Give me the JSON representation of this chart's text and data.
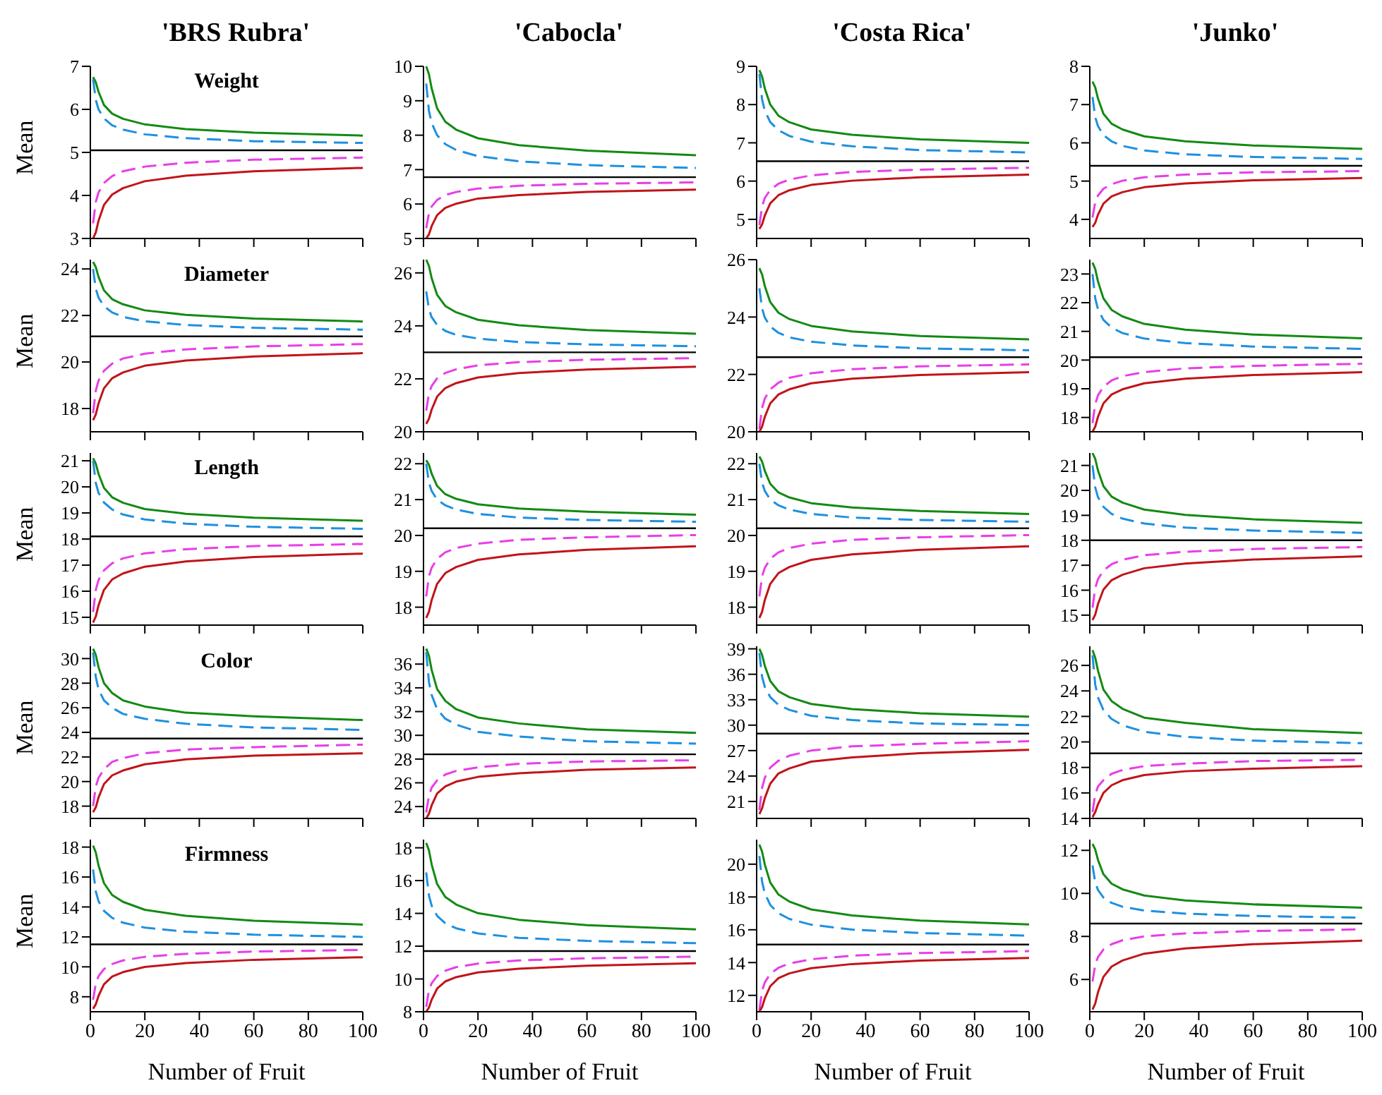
{
  "chart_data": [
    {
      "type": "line",
      "title": "'BRS Rubra'",
      "subtitle": "Weight",
      "ylabel": "Mean",
      "x": [
        1,
        2,
        3,
        5,
        8,
        12,
        20,
        35,
        60,
        100
      ],
      "xlim": [
        0,
        100
      ],
      "xticks": [
        0,
        20,
        40,
        60,
        80,
        100
      ],
      "ylim": [
        3,
        7
      ],
      "yticks": [
        3,
        4,
        5,
        6,
        7
      ],
      "tick_labels": "y",
      "ref_lines": [
        {
          "axis": "y",
          "value": 5.05,
          "color": "#000000"
        }
      ],
      "series": [
        {
          "color": "#138a13",
          "values": [
            6.75,
            6.63,
            6.41,
            6.1,
            5.9,
            5.78,
            5.65,
            5.54,
            5.46,
            5.39
          ]
        },
        {
          "color": "#1e90e0",
          "line_style": "dashed",
          "values": [
            6.7,
            6.22,
            6.0,
            5.79,
            5.63,
            5.53,
            5.42,
            5.33,
            5.26,
            5.22
          ]
        },
        {
          "color": "#e83ee8",
          "line_style": "dashed",
          "values": [
            3.35,
            3.85,
            4.07,
            4.29,
            4.45,
            4.56,
            4.67,
            4.76,
            4.83,
            4.88
          ]
        },
        {
          "color": "#c0141a",
          "values": [
            3.0,
            3.14,
            3.41,
            3.78,
            4.02,
            4.17,
            4.33,
            4.46,
            4.56,
            4.64
          ]
        }
      ]
    },
    {
      "type": "line",
      "title": "'Cabocla'",
      "x": [
        1,
        2,
        3,
        5,
        8,
        12,
        20,
        35,
        60,
        100
      ],
      "xlim": [
        0,
        100
      ],
      "xticks": [
        0,
        20,
        40,
        60,
        80,
        100
      ],
      "ylim": [
        5,
        10
      ],
      "yticks": [
        5,
        6,
        7,
        8,
        9,
        10
      ],
      "tick_labels": "y",
      "ref_lines": [
        {
          "axis": "y",
          "value": 6.78,
          "color": "#000000"
        }
      ],
      "series": [
        {
          "color": "#138a13",
          "values": [
            10.0,
            9.77,
            9.36,
            8.78,
            8.39,
            8.16,
            7.91,
            7.71,
            7.55,
            7.42
          ]
        },
        {
          "color": "#1e90e0",
          "line_style": "dashed",
          "values": [
            9.5,
            8.7,
            8.35,
            8.0,
            7.74,
            7.57,
            7.39,
            7.24,
            7.13,
            7.05
          ]
        },
        {
          "color": "#e83ee8",
          "line_style": "dashed",
          "values": [
            5.3,
            5.73,
            5.93,
            6.12,
            6.26,
            6.35,
            6.45,
            6.53,
            6.59,
            6.63
          ]
        },
        {
          "color": "#c0141a",
          "values": [
            5.0,
            5.12,
            5.36,
            5.68,
            5.89,
            6.01,
            6.16,
            6.26,
            6.35,
            6.42
          ]
        }
      ]
    },
    {
      "type": "line",
      "title": "'Costa Rica'",
      "x": [
        1,
        2,
        3,
        5,
        8,
        12,
        20,
        35,
        60,
        100
      ],
      "xlim": [
        0,
        100
      ],
      "xticks": [
        0,
        20,
        40,
        60,
        80,
        100
      ],
      "ylim": [
        4.5,
        9
      ],
      "yticks": [
        5,
        6,
        7,
        8,
        9
      ],
      "tick_labels": "y",
      "ref_lines": [
        {
          "axis": "y",
          "value": 6.52,
          "color": "#000000"
        }
      ],
      "series": [
        {
          "color": "#138a13",
          "values": [
            8.9,
            8.73,
            8.42,
            8.0,
            7.71,
            7.54,
            7.35,
            7.21,
            7.09,
            7.0
          ]
        },
        {
          "color": "#1e90e0",
          "line_style": "dashed",
          "values": [
            8.8,
            8.13,
            7.84,
            7.54,
            7.33,
            7.18,
            7.03,
            6.91,
            6.81,
            6.75
          ]
        },
        {
          "color": "#e83ee8",
          "line_style": "dashed",
          "values": [
            4.85,
            5.34,
            5.56,
            5.77,
            5.93,
            6.04,
            6.15,
            6.24,
            6.3,
            6.35
          ]
        },
        {
          "color": "#c0141a",
          "values": [
            4.75,
            4.87,
            5.1,
            5.42,
            5.63,
            5.76,
            5.9,
            6.01,
            6.1,
            6.17
          ]
        }
      ]
    },
    {
      "type": "line",
      "title": "'Junko'",
      "x": [
        1,
        2,
        3,
        5,
        8,
        12,
        20,
        35,
        60,
        100
      ],
      "xlim": [
        0,
        100
      ],
      "xticks": [
        0,
        20,
        40,
        60,
        80,
        100
      ],
      "ylim": [
        3.5,
        8
      ],
      "yticks": [
        4,
        5,
        6,
        7,
        8
      ],
      "tick_labels": "y",
      "ref_lines": [
        {
          "axis": "y",
          "value": 5.4,
          "color": "#000000"
        }
      ],
      "series": [
        {
          "color": "#138a13",
          "values": [
            7.6,
            7.45,
            7.16,
            6.76,
            6.5,
            6.35,
            6.17,
            6.04,
            5.93,
            5.84
          ]
        },
        {
          "color": "#1e90e0",
          "line_style": "dashed",
          "values": [
            7.2,
            6.67,
            6.44,
            6.2,
            6.04,
            5.92,
            5.8,
            5.7,
            5.63,
            5.58
          ]
        },
        {
          "color": "#e83ee8",
          "line_style": "dashed",
          "values": [
            4.05,
            4.45,
            4.62,
            4.8,
            4.92,
            5.01,
            5.1,
            5.17,
            5.23,
            5.26
          ]
        },
        {
          "color": "#c0141a",
          "values": [
            3.8,
            3.91,
            4.12,
            4.41,
            4.6,
            4.71,
            4.84,
            4.94,
            5.02,
            5.08
          ]
        }
      ]
    },
    {
      "type": "line",
      "subtitle": "Diameter",
      "ylabel": "Mean",
      "x": [
        1,
        2,
        3,
        5,
        8,
        12,
        20,
        35,
        60,
        100
      ],
      "xlim": [
        0,
        100
      ],
      "xticks": [
        0,
        20,
        40,
        60,
        80,
        100
      ],
      "ylim": [
        17,
        24.4
      ],
      "yticks": [
        18,
        20,
        22,
        24
      ],
      "tick_labels": "y",
      "ref_lines": [
        {
          "axis": "y",
          "value": 21.1,
          "color": "#000000"
        }
      ],
      "series": [
        {
          "color": "#138a13",
          "values": [
            24.3,
            24.08,
            23.66,
            23.08,
            22.7,
            22.48,
            22.22,
            22.03,
            21.87,
            21.74
          ]
        },
        {
          "color": "#1e90e0",
          "line_style": "dashed",
          "values": [
            24.0,
            23.15,
            22.77,
            22.4,
            22.13,
            21.94,
            21.75,
            21.59,
            21.47,
            21.39
          ]
        },
        {
          "color": "#e83ee8",
          "line_style": "dashed",
          "values": [
            17.8,
            18.77,
            19.2,
            19.62,
            19.93,
            20.15,
            20.36,
            20.54,
            20.67,
            20.77
          ]
        },
        {
          "color": "#c0141a",
          "values": [
            17.5,
            17.75,
            18.22,
            18.87,
            19.3,
            19.55,
            19.84,
            20.06,
            20.24,
            20.38
          ]
        }
      ]
    },
    {
      "type": "line",
      "x": [
        1,
        2,
        3,
        5,
        8,
        12,
        20,
        35,
        60,
        100
      ],
      "xlim": [
        0,
        100
      ],
      "xticks": [
        0,
        20,
        40,
        60,
        80,
        100
      ],
      "ylim": [
        20,
        26.5
      ],
      "yticks": [
        20,
        22,
        24,
        26
      ],
      "tick_labels": "y",
      "ref_lines": [
        {
          "axis": "y",
          "value": 23.0,
          "color": "#000000"
        }
      ],
      "series": [
        {
          "color": "#138a13",
          "values": [
            26.5,
            26.26,
            25.8,
            25.17,
            24.75,
            24.51,
            24.23,
            24.02,
            23.84,
            23.7
          ]
        },
        {
          "color": "#1e90e0",
          "line_style": "dashed",
          "values": [
            25.3,
            24.63,
            24.33,
            24.03,
            23.81,
            23.66,
            23.52,
            23.39,
            23.3,
            23.23
          ]
        },
        {
          "color": "#e83ee8",
          "line_style": "dashed",
          "values": [
            20.8,
            21.44,
            21.73,
            22.02,
            22.22,
            22.36,
            22.51,
            22.63,
            22.72,
            22.78
          ]
        },
        {
          "color": "#c0141a",
          "values": [
            20.3,
            20.49,
            20.84,
            21.33,
            21.65,
            21.84,
            22.05,
            22.22,
            22.35,
            22.46
          ]
        }
      ]
    },
    {
      "type": "line",
      "x": [
        1,
        2,
        3,
        5,
        8,
        12,
        20,
        35,
        60,
        100
      ],
      "xlim": [
        0,
        100
      ],
      "xticks": [
        0,
        20,
        40,
        60,
        80,
        100
      ],
      "ylim": [
        20,
        26
      ],
      "yticks": [
        20,
        22,
        24,
        26
      ],
      "tick_labels": "y",
      "ref_lines": [
        {
          "axis": "y",
          "value": 22.6,
          "color": "#000000"
        }
      ],
      "series": [
        {
          "color": "#138a13",
          "values": [
            25.7,
            25.48,
            25.08,
            24.52,
            24.15,
            23.93,
            23.69,
            23.5,
            23.34,
            23.22
          ]
        },
        {
          "color": "#1e90e0",
          "line_style": "dashed",
          "values": [
            25.0,
            24.3,
            23.98,
            23.67,
            23.45,
            23.29,
            23.14,
            23.01,
            22.91,
            22.84
          ]
        },
        {
          "color": "#e83ee8",
          "line_style": "dashed",
          "values": [
            20.1,
            20.83,
            21.16,
            21.48,
            21.71,
            21.88,
            22.04,
            22.18,
            22.28,
            22.35
          ]
        },
        {
          "color": "#c0141a",
          "values": [
            20.0,
            20.18,
            20.52,
            20.99,
            21.3,
            21.48,
            21.69,
            21.85,
            21.98,
            22.08
          ]
        }
      ]
    },
    {
      "type": "line",
      "x": [
        1,
        2,
        3,
        5,
        8,
        12,
        20,
        35,
        60,
        100
      ],
      "xlim": [
        0,
        100
      ],
      "xticks": [
        0,
        20,
        40,
        60,
        80,
        100
      ],
      "ylim": [
        17.5,
        23.5
      ],
      "yticks": [
        18,
        19,
        20,
        21,
        22,
        23
      ],
      "tick_labels": "y",
      "ref_lines": [
        {
          "axis": "y",
          "value": 20.1,
          "color": "#000000"
        }
      ],
      "series": [
        {
          "color": "#138a13",
          "values": [
            23.4,
            23.17,
            22.74,
            22.15,
            21.75,
            21.52,
            21.26,
            21.06,
            20.89,
            20.76
          ]
        },
        {
          "color": "#1e90e0",
          "line_style": "dashed",
          "values": [
            23.0,
            22.15,
            21.77,
            21.4,
            21.13,
            20.94,
            20.75,
            20.59,
            20.47,
            20.39
          ]
        },
        {
          "color": "#e83ee8",
          "line_style": "dashed",
          "values": [
            17.8,
            18.47,
            18.77,
            19.07,
            19.29,
            19.44,
            19.58,
            19.71,
            19.8,
            19.87
          ]
        },
        {
          "color": "#c0141a",
          "values": [
            17.5,
            17.68,
            18.02,
            18.49,
            18.8,
            18.98,
            19.19,
            19.35,
            19.48,
            19.58
          ]
        }
      ]
    },
    {
      "type": "line",
      "subtitle": "Length",
      "ylabel": "Mean",
      "x": [
        1,
        2,
        3,
        5,
        8,
        12,
        20,
        35,
        60,
        100
      ],
      "xlim": [
        0,
        100
      ],
      "xticks": [
        0,
        20,
        40,
        60,
        80,
        100
      ],
      "ylim": [
        14.7,
        21.3
      ],
      "yticks": [
        15,
        16,
        17,
        18,
        19,
        20,
        21
      ],
      "tick_labels": "y",
      "ref_lines": [
        {
          "axis": "y",
          "value": 18.1,
          "color": "#000000"
        }
      ],
      "series": [
        {
          "color": "#138a13",
          "values": [
            21.1,
            20.89,
            20.5,
            19.96,
            19.6,
            19.39,
            19.15,
            18.97,
            18.82,
            18.7
          ]
        },
        {
          "color": "#1e90e0",
          "line_style": "dashed",
          "values": [
            21.0,
            20.15,
            19.77,
            19.4,
            19.13,
            18.94,
            18.75,
            18.59,
            18.47,
            18.39
          ]
        },
        {
          "color": "#e83ee8",
          "line_style": "dashed",
          "values": [
            15.2,
            16.05,
            16.43,
            16.8,
            17.07,
            17.26,
            17.45,
            17.61,
            17.73,
            17.81
          ]
        },
        {
          "color": "#c0141a",
          "values": [
            14.8,
            15.03,
            15.46,
            16.05,
            16.45,
            16.68,
            16.94,
            17.14,
            17.31,
            17.44
          ]
        }
      ]
    },
    {
      "type": "line",
      "x": [
        1,
        2,
        3,
        5,
        8,
        12,
        20,
        35,
        60,
        100
      ],
      "xlim": [
        0,
        100
      ],
      "xticks": [
        0,
        20,
        40,
        60,
        80,
        100
      ],
      "ylim": [
        17.5,
        22.3
      ],
      "yticks": [
        18,
        19,
        20,
        21,
        22
      ],
      "tick_labels": "y",
      "ref_lines": [
        {
          "axis": "y",
          "value": 20.2,
          "color": "#000000"
        }
      ],
      "series": [
        {
          "color": "#138a13",
          "values": [
            22.1,
            21.97,
            21.72,
            21.38,
            21.15,
            21.02,
            20.87,
            20.75,
            20.66,
            20.58
          ]
        },
        {
          "color": "#1e90e0",
          "line_style": "dashed",
          "values": [
            22.0,
            21.47,
            21.24,
            21.0,
            20.84,
            20.72,
            20.6,
            20.5,
            20.43,
            20.38
          ]
        },
        {
          "color": "#e83ee8",
          "line_style": "dashed",
          "values": [
            18.3,
            18.86,
            19.1,
            19.35,
            19.53,
            19.65,
            19.77,
            19.88,
            19.95,
            20.01
          ]
        },
        {
          "color": "#c0141a",
          "values": [
            17.7,
            17.87,
            18.2,
            18.65,
            18.95,
            19.12,
            19.32,
            19.47,
            19.6,
            19.7
          ]
        }
      ]
    },
    {
      "type": "line",
      "x": [
        1,
        2,
        3,
        5,
        8,
        12,
        20,
        35,
        60,
        100
      ],
      "xlim": [
        0,
        100
      ],
      "xticks": [
        0,
        20,
        40,
        60,
        80,
        100
      ],
      "ylim": [
        17.5,
        22.3
      ],
      "yticks": [
        18,
        19,
        20,
        21,
        22
      ],
      "tick_labels": "y",
      "ref_lines": [
        {
          "axis": "y",
          "value": 20.2,
          "color": "#000000"
        }
      ],
      "series": [
        {
          "color": "#138a13",
          "values": [
            22.2,
            22.06,
            21.8,
            21.44,
            21.2,
            21.06,
            20.9,
            20.78,
            20.68,
            20.6
          ]
        },
        {
          "color": "#1e90e0",
          "line_style": "dashed",
          "values": [
            22.0,
            21.47,
            21.24,
            21.0,
            20.84,
            20.72,
            20.6,
            20.5,
            20.43,
            20.38
          ]
        },
        {
          "color": "#e83ee8",
          "line_style": "dashed",
          "values": [
            18.3,
            18.86,
            19.1,
            19.35,
            19.53,
            19.65,
            19.77,
            19.88,
            19.95,
            20.01
          ]
        },
        {
          "color": "#c0141a",
          "values": [
            17.7,
            17.87,
            18.2,
            18.65,
            18.95,
            19.12,
            19.32,
            19.47,
            19.6,
            19.7
          ]
        }
      ]
    },
    {
      "type": "line",
      "x": [
        1,
        2,
        3,
        5,
        8,
        12,
        20,
        35,
        60,
        100
      ],
      "xlim": [
        0,
        100
      ],
      "xticks": [
        0,
        20,
        40,
        60,
        80,
        100
      ],
      "ylim": [
        14.6,
        21.5
      ],
      "yticks": [
        15,
        16,
        17,
        18,
        19,
        20,
        21
      ],
      "tick_labels": "y",
      "ref_lines": [
        {
          "axis": "y",
          "value": 18.0,
          "color": "#000000"
        }
      ],
      "series": [
        {
          "color": "#138a13",
          "values": [
            21.5,
            21.26,
            20.8,
            20.17,
            19.75,
            19.51,
            19.23,
            19.02,
            18.84,
            18.7
          ]
        },
        {
          "color": "#1e90e0",
          "line_style": "dashed",
          "values": [
            21.0,
            20.12,
            19.73,
            19.34,
            19.06,
            18.87,
            18.67,
            18.51,
            18.39,
            18.3
          ]
        },
        {
          "color": "#e83ee8",
          "line_style": "dashed",
          "values": [
            15.3,
            16.09,
            16.44,
            16.79,
            17.04,
            17.22,
            17.4,
            17.54,
            17.65,
            17.73
          ]
        },
        {
          "color": "#c0141a",
          "values": [
            14.8,
            15.02,
            15.44,
            16.02,
            16.4,
            16.62,
            16.88,
            17.07,
            17.23,
            17.36
          ]
        }
      ]
    },
    {
      "type": "line",
      "subtitle": "Color",
      "ylabel": "Mean",
      "x": [
        1,
        2,
        3,
        5,
        8,
        12,
        20,
        35,
        60,
        100
      ],
      "xlim": [
        0,
        100
      ],
      "xticks": [
        0,
        20,
        40,
        60,
        80,
        100
      ],
      "ylim": [
        17,
        31
      ],
      "yticks": [
        18,
        20,
        22,
        24,
        26,
        28,
        30
      ],
      "tick_labels": "y",
      "ref_lines": [
        {
          "axis": "y",
          "value": 23.5,
          "color": "#000000"
        }
      ],
      "series": [
        {
          "color": "#138a13",
          "values": [
            30.8,
            30.3,
            29.3,
            28.0,
            27.2,
            26.6,
            26.1,
            25.6,
            25.3,
            25.0
          ]
        },
        {
          "color": "#1e90e0",
          "line_style": "dashed",
          "values": [
            30.5,
            28.5,
            27.5,
            26.6,
            26.0,
            25.5,
            25.1,
            24.7,
            24.4,
            24.2
          ]
        },
        {
          "color": "#e83ee8",
          "line_style": "dashed",
          "values": [
            18.0,
            19.6,
            20.3,
            21.0,
            21.6,
            21.9,
            22.3,
            22.6,
            22.8,
            23.0
          ]
        },
        {
          "color": "#c0141a",
          "values": [
            17.5,
            17.9,
            18.7,
            19.8,
            20.5,
            20.9,
            21.4,
            21.8,
            22.1,
            22.3
          ]
        }
      ]
    },
    {
      "type": "line",
      "x": [
        1,
        2,
        3,
        5,
        8,
        12,
        20,
        35,
        60,
        100
      ],
      "xlim": [
        0,
        100
      ],
      "xticks": [
        0,
        20,
        40,
        60,
        80,
        100
      ],
      "ylim": [
        23,
        37.5
      ],
      "yticks": [
        24,
        26,
        28,
        30,
        32,
        34,
        36
      ],
      "tick_labels": "y",
      "ref_lines": [
        {
          "axis": "y",
          "value": 28.4,
          "color": "#000000"
        }
      ],
      "series": [
        {
          "color": "#138a13",
          "values": [
            37.3,
            36.7,
            35.5,
            33.9,
            32.9,
            32.2,
            31.5,
            31.0,
            30.5,
            30.2
          ]
        },
        {
          "color": "#1e90e0",
          "line_style": "dashed",
          "values": [
            37.0,
            34.5,
            33.4,
            32.2,
            31.4,
            30.9,
            30.3,
            29.9,
            29.5,
            29.3
          ]
        },
        {
          "color": "#e83ee8",
          "line_style": "dashed",
          "values": [
            23.5,
            24.9,
            25.6,
            26.2,
            26.7,
            27.0,
            27.3,
            27.6,
            27.8,
            27.9
          ]
        },
        {
          "color": "#c0141a",
          "values": [
            23.0,
            23.4,
            24.1,
            25.1,
            25.7,
            26.1,
            26.5,
            26.8,
            27.1,
            27.3
          ]
        }
      ]
    },
    {
      "type": "line",
      "x": [
        1,
        2,
        3,
        5,
        8,
        12,
        20,
        35,
        60,
        100
      ],
      "xlim": [
        0,
        100
      ],
      "xticks": [
        0,
        20,
        40,
        60,
        80,
        100
      ],
      "ylim": [
        19,
        39.3
      ],
      "yticks": [
        21,
        24,
        27,
        30,
        33,
        36,
        39
      ],
      "tick_labels": "y",
      "ref_lines": [
        {
          "axis": "y",
          "value": 29.0,
          "color": "#000000"
        }
      ],
      "series": [
        {
          "color": "#138a13",
          "values": [
            39.0,
            38.3,
            37.0,
            35.2,
            34.0,
            33.3,
            32.5,
            31.9,
            31.4,
            31.0
          ]
        },
        {
          "color": "#1e90e0",
          "line_style": "dashed",
          "values": [
            38.5,
            35.7,
            34.5,
            33.3,
            32.4,
            31.8,
            31.1,
            30.6,
            30.2,
            30.0
          ]
        },
        {
          "color": "#e83ee8",
          "line_style": "dashed",
          "values": [
            20.0,
            22.6,
            23.8,
            25.0,
            25.8,
            26.4,
            27.0,
            27.5,
            27.8,
            28.1
          ]
        },
        {
          "color": "#c0141a",
          "values": [
            19.5,
            20.2,
            21.4,
            23.1,
            24.3,
            24.9,
            25.7,
            26.2,
            26.7,
            27.1
          ]
        }
      ]
    },
    {
      "type": "line",
      "x": [
        1,
        2,
        3,
        5,
        8,
        12,
        20,
        35,
        60,
        100
      ],
      "xlim": [
        0,
        100
      ],
      "xticks": [
        0,
        20,
        40,
        60,
        80,
        100
      ],
      "ylim": [
        14,
        27.5
      ],
      "yticks": [
        14,
        16,
        18,
        20,
        22,
        24,
        26
      ],
      "tick_labels": "y",
      "ref_lines": [
        {
          "axis": "y",
          "value": 19.1,
          "color": "#000000"
        }
      ],
      "series": [
        {
          "color": "#138a13",
          "values": [
            27.2,
            26.6,
            25.6,
            24.1,
            23.2,
            22.6,
            21.9,
            21.5,
            21.0,
            20.7
          ]
        },
        {
          "color": "#1e90e0",
          "line_style": "dashed",
          "values": [
            26.8,
            24.5,
            23.5,
            22.5,
            21.8,
            21.3,
            20.8,
            20.4,
            20.1,
            19.9
          ]
        },
        {
          "color": "#e83ee8",
          "line_style": "dashed",
          "values": [
            14.5,
            15.9,
            16.5,
            17.0,
            17.5,
            17.8,
            18.1,
            18.3,
            18.5,
            18.6
          ]
        },
        {
          "color": "#c0141a",
          "values": [
            14.1,
            14.5,
            15.1,
            16.0,
            16.6,
            17.0,
            17.4,
            17.7,
            17.9,
            18.1
          ]
        }
      ]
    },
    {
      "type": "line",
      "subtitle": "Firmness",
      "ylabel": "Mean",
      "xlabel": "Number of Fruit",
      "x": [
        1,
        2,
        3,
        5,
        8,
        12,
        20,
        35,
        60,
        100
      ],
      "xlim": [
        0,
        100
      ],
      "xticks": [
        0,
        20,
        40,
        60,
        80,
        100
      ],
      "ylim": [
        7,
        18.5
      ],
      "yticks": [
        8,
        10,
        12,
        14,
        16,
        18
      ],
      "ref_lines": [
        {
          "axis": "y",
          "value": 11.5,
          "color": "#000000"
        }
      ],
      "series": [
        {
          "color": "#138a13",
          "values": [
            18.1,
            17.64,
            16.78,
            15.59,
            14.8,
            14.34,
            13.81,
            13.41,
            13.08,
            12.82
          ]
        },
        {
          "color": "#1e90e0",
          "line_style": "dashed",
          "values": [
            16.5,
            15.04,
            14.39,
            13.74,
            13.27,
            12.95,
            12.62,
            12.35,
            12.15,
            12.0
          ]
        },
        {
          "color": "#e83ee8",
          "line_style": "dashed",
          "values": [
            7.8,
            8.88,
            9.37,
            9.85,
            10.19,
            10.43,
            10.67,
            10.87,
            11.02,
            11.13
          ]
        },
        {
          "color": "#c0141a",
          "values": [
            7.2,
            7.5,
            8.06,
            8.83,
            9.35,
            9.65,
            9.99,
            10.25,
            10.47,
            10.64
          ]
        }
      ]
    },
    {
      "type": "line",
      "xlabel": "Number of Fruit",
      "x": [
        1,
        2,
        3,
        5,
        8,
        12,
        20,
        35,
        60,
        100
      ],
      "xlim": [
        0,
        100
      ],
      "xticks": [
        0,
        20,
        40,
        60,
        80,
        100
      ],
      "ylim": [
        8,
        18.5
      ],
      "yticks": [
        8,
        10,
        12,
        14,
        16,
        18
      ],
      "ref_lines": [
        {
          "axis": "y",
          "value": 11.7,
          "color": "#000000"
        }
      ],
      "series": [
        {
          "color": "#138a13",
          "values": [
            18.3,
            17.84,
            16.98,
            15.79,
            15.0,
            14.54,
            14.01,
            13.61,
            13.28,
            13.02
          ]
        },
        {
          "color": "#1e90e0",
          "line_style": "dashed",
          "values": [
            16.5,
            15.09,
            14.47,
            13.85,
            13.4,
            13.09,
            12.78,
            12.51,
            12.32,
            12.18
          ]
        },
        {
          "color": "#e83ee8",
          "line_style": "dashed",
          "values": [
            8.3,
            9.3,
            9.74,
            10.18,
            10.5,
            10.72,
            10.94,
            11.13,
            11.26,
            11.36
          ]
        },
        {
          "color": "#c0141a",
          "values": [
            8.0,
            8.26,
            8.74,
            9.41,
            9.85,
            10.11,
            10.4,
            10.63,
            10.81,
            10.96
          ]
        }
      ]
    },
    {
      "type": "line",
      "xlabel": "Number of Fruit",
      "x": [
        1,
        2,
        3,
        5,
        8,
        12,
        20,
        35,
        60,
        100
      ],
      "xlim": [
        0,
        100
      ],
      "xticks": [
        0,
        20,
        40,
        60,
        80,
        100
      ],
      "ylim": [
        11,
        21.5
      ],
      "yticks": [
        12,
        14,
        16,
        18,
        20
      ],
      "ref_lines": [
        {
          "axis": "y",
          "value": 15.1,
          "color": "#000000"
        }
      ],
      "series": [
        {
          "color": "#138a13",
          "values": [
            21.2,
            20.77,
            19.98,
            18.88,
            18.15,
            17.72,
            17.24,
            16.87,
            16.56,
            16.32
          ]
        },
        {
          "color": "#1e90e0",
          "line_style": "dashed",
          "values": [
            20.5,
            18.92,
            18.22,
            17.51,
            17.01,
            16.66,
            16.31,
            16.01,
            15.8,
            15.64
          ]
        },
        {
          "color": "#e83ee8",
          "line_style": "dashed",
          "values": [
            11.1,
            12.27,
            12.79,
            13.31,
            13.68,
            13.94,
            14.2,
            14.42,
            14.58,
            14.7
          ]
        },
        {
          "color": "#c0141a",
          "values": [
            11.0,
            11.29,
            11.82,
            12.56,
            13.05,
            13.34,
            13.66,
            13.91,
            14.12,
            14.28
          ]
        }
      ]
    },
    {
      "type": "line",
      "xlabel": "Number of Fruit",
      "x": [
        1,
        2,
        3,
        5,
        8,
        12,
        20,
        35,
        60,
        100
      ],
      "xlim": [
        0,
        100
      ],
      "xticks": [
        0,
        20,
        40,
        60,
        80,
        100
      ],
      "ylim": [
        4.5,
        12.5
      ],
      "yticks": [
        6,
        8,
        10,
        12
      ],
      "ref_lines": [
        {
          "axis": "y",
          "value": 8.6,
          "color": "#000000"
        }
      ],
      "series": [
        {
          "color": "#138a13",
          "values": [
            12.3,
            12.04,
            11.56,
            10.89,
            10.45,
            10.19,
            9.9,
            9.67,
            9.49,
            9.34
          ]
        },
        {
          "color": "#1e90e0",
          "line_style": "dashed",
          "values": [
            11.3,
            10.51,
            10.16,
            9.81,
            9.56,
            9.38,
            9.2,
            9.06,
            8.95,
            8.87
          ]
        },
        {
          "color": "#e83ee8",
          "line_style": "dashed",
          "values": [
            5.9,
            6.69,
            7.04,
            7.39,
            7.64,
            7.82,
            8.0,
            8.14,
            8.25,
            8.33
          ]
        },
        {
          "color": "#c0141a",
          "values": [
            4.6,
            4.88,
            5.4,
            6.12,
            6.6,
            6.88,
            7.2,
            7.44,
            7.64,
            7.8
          ]
        }
      ]
    }
  ]
}
